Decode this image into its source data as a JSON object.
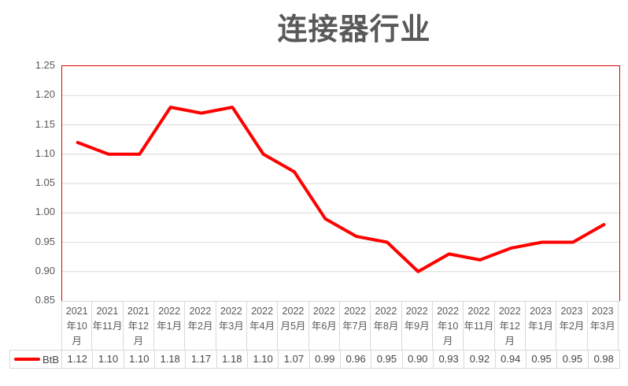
{
  "title": "连接器行业",
  "legend": {
    "series_label": "BtB"
  },
  "colors": {
    "line": "#ff0000",
    "plot_border": "#e00000",
    "grid": "#d9d9d9",
    "table_border": "#d9d9d9",
    "text": "#595959",
    "title_text": "#595959",
    "value_text": "#444444",
    "background": "#ffffff"
  },
  "chart_data": {
    "type": "line",
    "title": "连接器行业",
    "categories": [
      "2021年10月",
      "2021年11月",
      "2021年12月",
      "2022年1月",
      "2022年2月",
      "2022年3月",
      "2022年4月",
      "2022月5月",
      "2022年6月",
      "2022年7月",
      "2022年8月",
      "2022年9月",
      "2022年10月",
      "2022年11月",
      "2022年12月",
      "2023年1月",
      "2023年2月",
      "2023年3月"
    ],
    "series": [
      {
        "name": "BtB",
        "color": "#ff0000",
        "values": [
          1.12,
          1.1,
          1.1,
          1.18,
          1.17,
          1.18,
          1.1,
          1.07,
          0.99,
          0.96,
          0.95,
          0.9,
          0.93,
          0.92,
          0.94,
          0.95,
          0.95,
          0.98
        ]
      }
    ],
    "xlabel": "",
    "ylabel": "",
    "ylim": [
      0.85,
      1.25
    ],
    "ytick_step": 0.05,
    "yticks": [
      0.85,
      0.9,
      0.95,
      1.0,
      1.05,
      1.1,
      1.15,
      1.2,
      1.25
    ],
    "grid": "horizontal",
    "legend_position": "bottom-table",
    "value_format_decimals": 2
  }
}
